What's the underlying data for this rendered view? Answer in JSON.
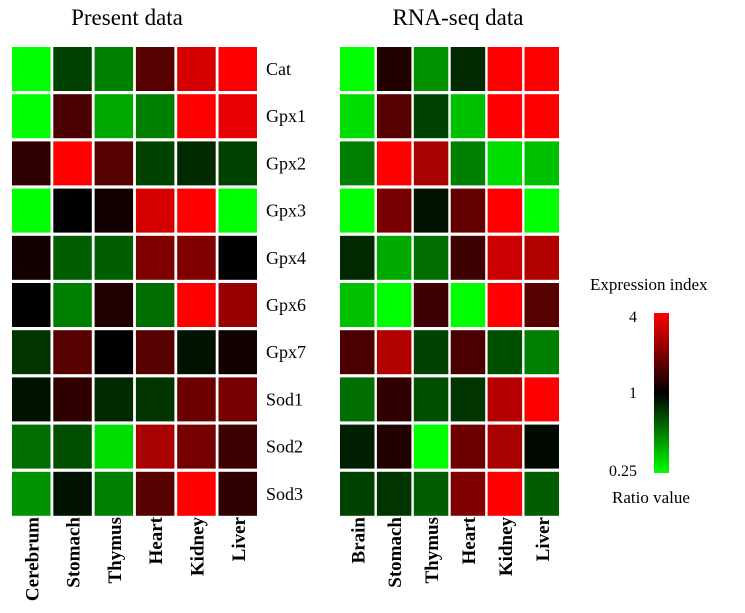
{
  "chart_data": [
    {
      "type": "heatmap",
      "title": "Present data",
      "categories": [
        "Cerebrum",
        "Stomach",
        "Thymus",
        "Heart",
        "Kidney",
        "Liver"
      ],
      "genes": [
        "Cat",
        "Gpx1",
        "Gpx2",
        "Gpx3",
        "Gpx4",
        "Gpx6",
        "Gpx7",
        "Sod1",
        "Sod2",
        "Sod3"
      ],
      "values": [
        [
          0.25,
          0.7,
          0.5,
          1.6,
          3.2,
          4
        ],
        [
          0.25,
          1.5,
          0.4,
          0.5,
          4,
          3.5
        ],
        [
          1.3,
          4,
          1.6,
          0.7,
          0.8,
          0.7
        ],
        [
          0.25,
          1.0,
          1.1,
          3.2,
          4,
          0.25
        ],
        [
          1.1,
          0.6,
          0.6,
          2.0,
          2.0,
          1.0
        ],
        [
          1.0,
          0.5,
          1.2,
          0.55,
          4,
          2.3
        ],
        [
          0.75,
          1.6,
          1.0,
          1.6,
          0.9,
          1.1
        ],
        [
          0.9,
          1.3,
          0.8,
          0.75,
          1.8,
          1.9
        ],
        [
          0.55,
          0.65,
          0.3,
          2.5,
          1.9,
          1.4
        ],
        [
          0.45,
          0.9,
          0.5,
          1.6,
          4,
          1.3
        ]
      ]
    },
    {
      "type": "heatmap",
      "title": "RNA-seq data",
      "categories": [
        "Brain",
        "Stomach",
        "Thymus",
        "Heart",
        "Kidney",
        "Liver"
      ],
      "genes": [
        "Cat",
        "Gpx1",
        "Gpx2",
        "Gpx3",
        "Gpx4",
        "Gpx6",
        "Gpx7",
        "Sod1",
        "Sod2",
        "Sod3"
      ],
      "values": [
        [
          0.25,
          1.2,
          0.45,
          0.8,
          4,
          4
        ],
        [
          0.3,
          1.6,
          0.7,
          0.35,
          4,
          4
        ],
        [
          0.5,
          4,
          2.5,
          0.5,
          0.3,
          0.35
        ],
        [
          0.25,
          1.9,
          0.9,
          1.7,
          4,
          0.25
        ],
        [
          0.8,
          0.4,
          0.55,
          1.4,
          3.0,
          2.6
        ],
        [
          0.35,
          0.25,
          1.4,
          0.25,
          4,
          1.6
        ],
        [
          1.5,
          2.6,
          0.7,
          1.5,
          0.65,
          0.5
        ],
        [
          0.55,
          1.3,
          0.65,
          0.75,
          2.7,
          4
        ],
        [
          0.85,
          1.2,
          0.25,
          1.8,
          2.5,
          0.95
        ],
        [
          0.7,
          0.75,
          0.6,
          2.0,
          4,
          0.6
        ]
      ]
    }
  ],
  "legend": {
    "title": "Expression index",
    "ticks": [
      "4",
      "1",
      "0.25"
    ],
    "tick_values": [
      4,
      1,
      0.25
    ],
    "footer": "Ratio value",
    "colors": {
      "low": "#00ff00",
      "mid": "#000000",
      "high": "#ff0000"
    }
  }
}
